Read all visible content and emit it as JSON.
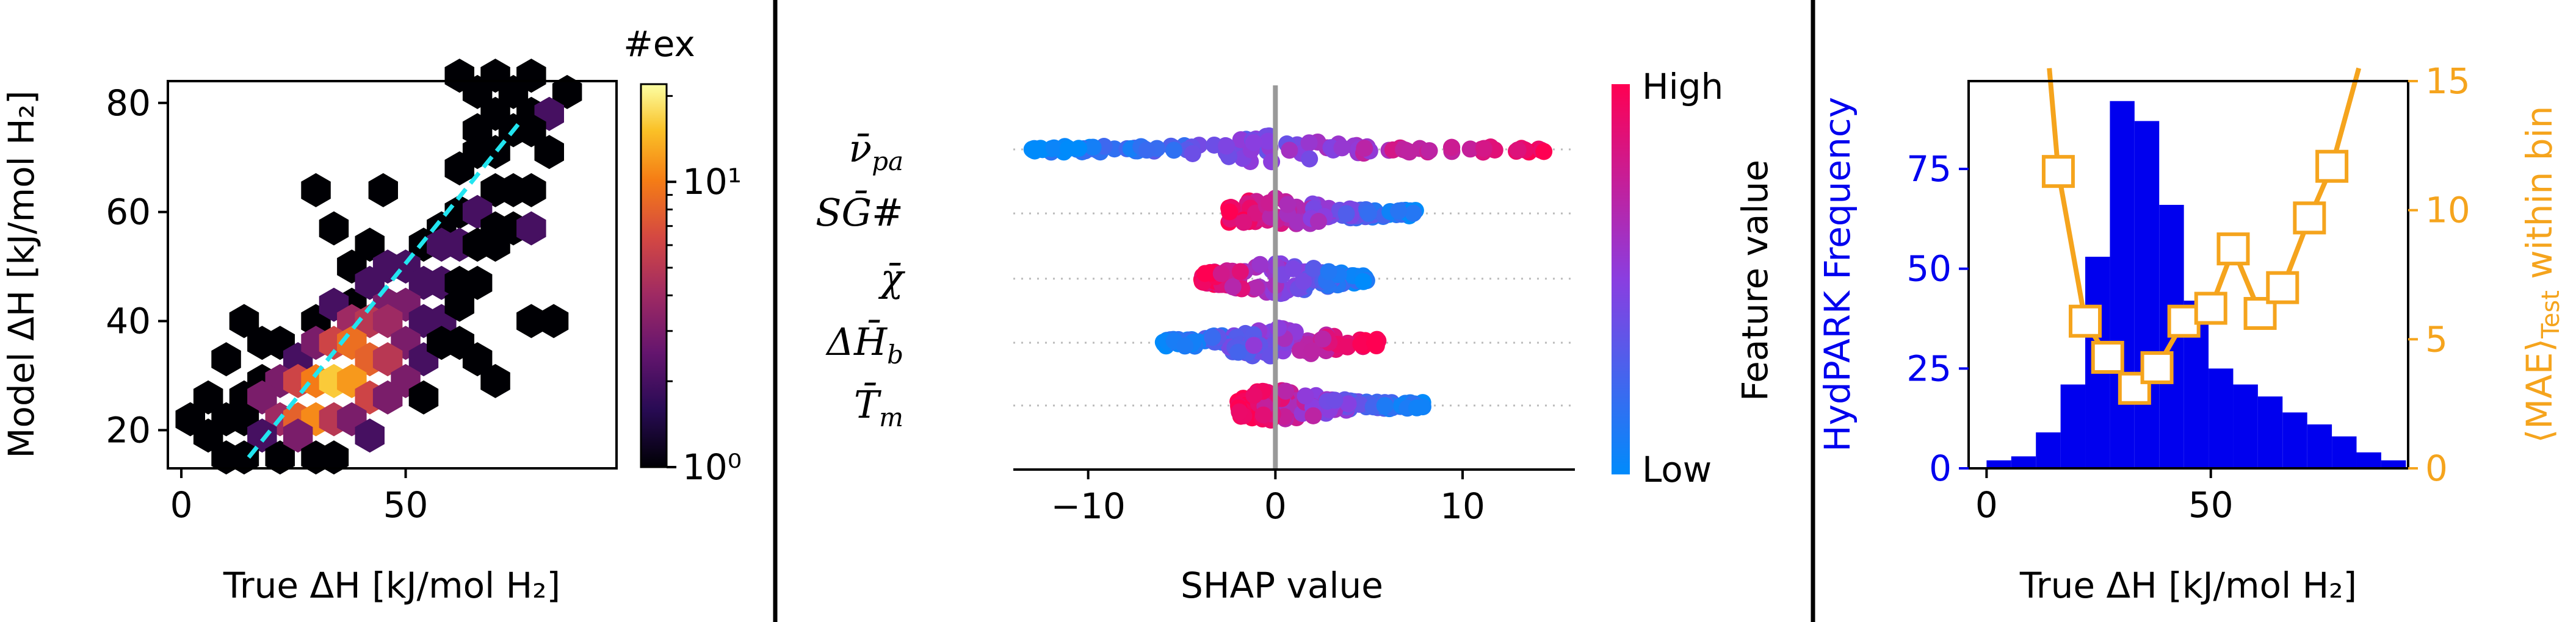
{
  "chart_data": [
    {
      "type": "heatmap",
      "subtype": "hexbin",
      "xlabel": "True ΔH [kJ/mol H₂]",
      "ylabel": "Model ΔH [kJ/mol H₂]",
      "xlim": [
        -3,
        97
      ],
      "ylim": [
        13,
        84
      ],
      "xticks": [
        0,
        50
      ],
      "yticks": [
        20,
        40,
        60,
        80
      ],
      "colorbar": {
        "label": "#ex",
        "scale": "log",
        "ticks": [
          "10⁰",
          "10¹"
        ],
        "range": [
          1,
          22
        ]
      },
      "trendline": {
        "x": [
          15,
          76
        ],
        "y": [
          15,
          77
        ],
        "style": "dashed",
        "color": "#22e5f0"
      },
      "bins": [
        [
          62,
          85,
          1
        ],
        [
          70,
          85,
          1
        ],
        [
          78,
          85,
          1
        ],
        [
          66,
          82,
          1
        ],
        [
          74,
          82,
          1
        ],
        [
          86,
          82,
          1
        ],
        [
          70,
          78,
          1
        ],
        [
          78,
          78,
          1
        ],
        [
          82,
          78,
          2
        ],
        [
          74,
          75,
          1
        ],
        [
          66,
          75,
          1
        ],
        [
          78,
          75,
          1
        ],
        [
          82,
          71,
          1
        ],
        [
          30,
          64,
          1
        ],
        [
          45,
          64,
          1
        ],
        [
          70,
          64,
          1
        ],
        [
          74,
          64,
          1
        ],
        [
          78,
          64,
          1
        ],
        [
          62,
          68,
          1
        ],
        [
          66,
          71,
          1
        ],
        [
          70,
          71,
          1
        ],
        [
          58,
          57,
          1
        ],
        [
          62,
          60,
          1
        ],
        [
          66,
          60,
          2
        ],
        [
          70,
          57,
          1
        ],
        [
          74,
          57,
          1
        ],
        [
          78,
          57,
          2
        ],
        [
          54,
          54,
          1
        ],
        [
          58,
          54,
          2
        ],
        [
          62,
          54,
          2
        ],
        [
          66,
          54,
          1
        ],
        [
          70,
          54,
          1
        ],
        [
          34,
          57,
          1
        ],
        [
          38,
          50,
          1
        ],
        [
          42,
          54,
          1
        ],
        [
          46,
          50,
          2
        ],
        [
          50,
          50,
          2
        ],
        [
          54,
          47,
          2
        ],
        [
          58,
          47,
          2
        ],
        [
          62,
          47,
          1
        ],
        [
          66,
          47,
          1
        ],
        [
          38,
          43,
          1
        ],
        [
          42,
          47,
          2
        ],
        [
          46,
          43,
          3
        ],
        [
          50,
          43,
          3
        ],
        [
          54,
          40,
          2
        ],
        [
          58,
          40,
          2
        ],
        [
          62,
          43,
          1
        ],
        [
          30,
          40,
          1
        ],
        [
          34,
          43,
          2
        ],
        [
          38,
          40,
          4
        ],
        [
          42,
          40,
          5
        ],
        [
          46,
          40,
          4
        ],
        [
          50,
          36,
          3
        ],
        [
          54,
          33,
          2
        ],
        [
          58,
          36,
          1
        ],
        [
          62,
          36,
          1
        ],
        [
          66,
          33,
          1
        ],
        [
          70,
          29,
          1
        ],
        [
          78,
          40,
          1
        ],
        [
          83,
          40,
          1
        ],
        [
          14,
          40,
          1
        ],
        [
          18,
          36,
          1
        ],
        [
          22,
          36,
          1
        ],
        [
          26,
          33,
          2
        ],
        [
          30,
          36,
          3
        ],
        [
          34,
          36,
          6
        ],
        [
          38,
          36,
          9
        ],
        [
          42,
          33,
          8
        ],
        [
          46,
          33,
          5
        ],
        [
          50,
          29,
          3
        ],
        [
          10,
          33,
          1
        ],
        [
          18,
          29,
          1
        ],
        [
          22,
          29,
          3
        ],
        [
          26,
          29,
          6
        ],
        [
          30,
          29,
          10
        ],
        [
          34,
          29,
          16
        ],
        [
          38,
          29,
          12
        ],
        [
          42,
          26,
          6
        ],
        [
          46,
          26,
          3
        ],
        [
          54,
          26,
          1
        ],
        [
          14,
          26,
          1
        ],
        [
          18,
          26,
          3
        ],
        [
          22,
          22,
          4
        ],
        [
          26,
          22,
          8
        ],
        [
          30,
          22,
          11
        ],
        [
          34,
          22,
          5
        ],
        [
          38,
          22,
          3
        ],
        [
          42,
          19,
          2
        ],
        [
          6,
          26,
          1
        ],
        [
          10,
          22,
          1
        ],
        [
          14,
          22,
          1
        ],
        [
          18,
          19,
          2
        ],
        [
          22,
          15,
          1
        ],
        [
          26,
          19,
          3
        ],
        [
          30,
          15,
          1
        ],
        [
          34,
          15,
          1
        ],
        [
          2,
          22,
          1
        ],
        [
          6,
          19,
          1
        ],
        [
          10,
          15,
          1
        ],
        [
          14,
          15,
          1
        ]
      ]
    },
    {
      "type": "scatter",
      "subtype": "shap-beeswarm",
      "xlabel": "SHAP value",
      "xlim": [
        -14,
        16
      ],
      "xticks": [
        -10,
        0,
        10
      ],
      "tick_labels": [
        "−10",
        "0",
        "10"
      ],
      "colorbar": {
        "label": "Feature value",
        "high": "High",
        "low": "Low"
      },
      "features": [
        {
          "name": "ν̄",
          "sub": "pa",
          "range": [
            -13,
            14.5
          ],
          "low_color_side": "negative"
        },
        {
          "name": "SḠ#",
          "sub": "",
          "range": [
            -2.5,
            7.5
          ],
          "low_color_side": "positive"
        },
        {
          "name": "χ̄",
          "sub": "",
          "range": [
            -4,
            5
          ],
          "low_color_side": "positive"
        },
        {
          "name": "ΔH̄",
          "sub": "b",
          "range": [
            -6,
            5.5
          ],
          "low_color_side": "negative"
        },
        {
          "name": "T̄",
          "sub": "m",
          "range": [
            -2,
            8
          ],
          "low_color_side": "positive"
        }
      ]
    },
    {
      "type": "bar",
      "secondary_type": "line",
      "xlabel": "True ΔH [kJ/mol H₂]",
      "ylabel": "HydPARK Frequency",
      "y2label": "⟨MAE⟩",
      "y2label_sub": "Test",
      "y2label_suffix": " within bin",
      "xlim": [
        -4,
        94
      ],
      "ylim": [
        0,
        97
      ],
      "y2lim": [
        0,
        15
      ],
      "xticks": [
        0,
        50
      ],
      "yticks": [
        0,
        25,
        50,
        75
      ],
      "y2ticks": [
        0,
        5,
        10,
        15
      ],
      "bar_color": "#0000ee",
      "line_color": "#f5a41d",
      "bins": [
        {
          "x0": 0,
          "x1": 5.5,
          "value": 2
        },
        {
          "x0": 5.5,
          "x1": 11,
          "value": 3
        },
        {
          "x0": 11,
          "x1": 16.5,
          "value": 9
        },
        {
          "x0": 16.5,
          "x1": 22,
          "value": 21
        },
        {
          "x0": 22,
          "x1": 27.5,
          "value": 53
        },
        {
          "x0": 27.5,
          "x1": 33,
          "value": 92
        },
        {
          "x0": 33,
          "x1": 38.5,
          "value": 87
        },
        {
          "x0": 38.5,
          "x1": 44,
          "value": 66
        },
        {
          "x0": 44,
          "x1": 49.5,
          "value": 42
        },
        {
          "x0": 49.5,
          "x1": 55,
          "value": 25
        },
        {
          "x0": 55,
          "x1": 60.5,
          "value": 21
        },
        {
          "x0": 60.5,
          "x1": 66,
          "value": 18
        },
        {
          "x0": 66,
          "x1": 71.5,
          "value": 14
        },
        {
          "x0": 71.5,
          "x1": 77,
          "value": 11
        },
        {
          "x0": 77,
          "x1": 82.5,
          "value": 8
        },
        {
          "x0": 82.5,
          "x1": 88,
          "value": 4
        },
        {
          "x0": 88,
          "x1": 93.5,
          "value": 2
        }
      ],
      "mae_points": {
        "x": [
          16,
          22,
          27,
          33,
          38,
          44,
          50,
          55,
          61,
          66,
          72,
          77
        ],
        "y": [
          11.5,
          5.7,
          4.3,
          3.1,
          3.9,
          5.7,
          6.2,
          8.5,
          6.0,
          7.0,
          9.7,
          11.7
        ]
      },
      "mae_line_ends": {
        "left": [
          14,
          15.5
        ],
        "right": [
          83,
          15.5
        ]
      }
    }
  ]
}
